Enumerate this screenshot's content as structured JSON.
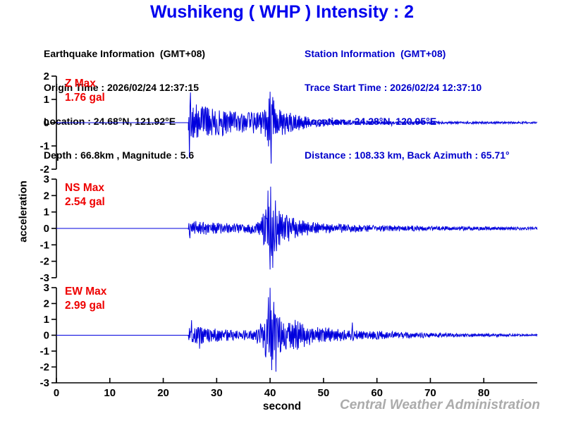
{
  "header": {
    "title": "Wushikeng  ( WHP )  Intensity : 2",
    "station_name": "Wushikeng",
    "station_code": "WHP",
    "intensity": "2"
  },
  "earthquake_info": {
    "heading": "Earthquake Information  (GMT+08)",
    "origin_time": "Origin Time : 2026/02/24 12:37:15",
    "location": "Location : 24.68°N, 121.92°E",
    "depth_magnitude": "Depth : 66.8km , Magnitude : 5.6"
  },
  "station_info": {
    "heading": "Station Information  (GMT+08)",
    "trace_start_time": "Trace Start Time : 2026/02/24 12:37:10",
    "location": "Location : 24.28°N, 120.95°E",
    "distance_azimuth": "Distance : 108.33 km, Back Azimuth : 65.71°"
  },
  "footer": {
    "watermark": "Central Weather Administration"
  },
  "colors": {
    "title_blue": "#0000ee",
    "station_blue": "#0000cc",
    "waveform_blue": "#0000dd",
    "max_label_red": "#ee0000",
    "axis_black": "#000000",
    "watermark_gray": "#ababab"
  },
  "chart_data": {
    "type": "line",
    "xlabel": "second",
    "ylabel": "acceleration",
    "x_range": [
      0,
      90
    ],
    "x_ticks": [
      0,
      10,
      20,
      30,
      40,
      50,
      60,
      70,
      80
    ],
    "grid": false,
    "traces": [
      {
        "name": "Z",
        "label": "Z Max",
        "max_text": "1.76 gal",
        "max_gal": 1.76,
        "unit": "gal",
        "ylim": [
          -2,
          2
        ],
        "y_ticks": [
          2,
          1,
          0,
          -1,
          -2
        ],
        "p_onset_s": 24.7,
        "s_arrival_s": 40.0,
        "seed": 13,
        "envelope": [
          [
            24.6,
            0.02
          ],
          [
            24.75,
            1.0
          ],
          [
            26,
            0.85
          ],
          [
            28,
            0.7
          ],
          [
            30,
            0.6
          ],
          [
            33,
            0.5
          ],
          [
            36,
            0.45
          ],
          [
            38.5,
            0.5
          ],
          [
            39.4,
            0.9
          ],
          [
            40,
            1.3
          ],
          [
            40.6,
            1.0
          ],
          [
            41.5,
            0.7
          ],
          [
            43,
            0.5
          ],
          [
            45,
            0.35
          ],
          [
            47,
            0.25
          ],
          [
            50,
            0.17
          ],
          [
            53,
            0.12
          ],
          [
            57,
            0.09
          ],
          [
            62,
            0.07
          ],
          [
            68,
            0.06
          ],
          [
            75,
            0.05
          ],
          [
            82,
            0.05
          ],
          [
            90,
            0.04
          ]
        ],
        "spikes": [
          [
            24.85,
            -1.5
          ],
          [
            25.1,
            1.3
          ],
          [
            39.95,
            1.33
          ],
          [
            40.2,
            -1.76
          ],
          [
            40.5,
            1.1
          ]
        ]
      },
      {
        "name": "NS",
        "label": "NS Max",
        "max_text": "2.54 gal",
        "max_gal": 2.54,
        "unit": "gal",
        "ylim": [
          -3,
          3
        ],
        "y_ticks": [
          3,
          2,
          1,
          0,
          -1,
          -2,
          -3
        ],
        "p_onset_s": 24.7,
        "s_arrival_s": 40.0,
        "seed": 47,
        "envelope": [
          [
            24.6,
            0.02
          ],
          [
            24.8,
            0.5
          ],
          [
            26,
            0.45
          ],
          [
            28,
            0.4
          ],
          [
            30,
            0.38
          ],
          [
            33,
            0.3
          ],
          [
            36,
            0.3
          ],
          [
            38,
            0.45
          ],
          [
            39,
            1.2
          ],
          [
            39.8,
            2.1
          ],
          [
            40.5,
            1.9
          ],
          [
            41.3,
            1.4
          ],
          [
            42.5,
            1.0
          ],
          [
            44,
            0.7
          ],
          [
            46,
            0.5
          ],
          [
            48,
            0.4
          ],
          [
            51,
            0.3
          ],
          [
            55,
            0.25
          ],
          [
            60,
            0.2
          ],
          [
            66,
            0.17
          ],
          [
            73,
            0.14
          ],
          [
            80,
            0.12
          ],
          [
            90,
            0.08
          ]
        ],
        "spikes": [
          [
            25.0,
            -0.6
          ],
          [
            39.6,
            2.3
          ],
          [
            39.95,
            -2.5
          ],
          [
            40.15,
            2.54
          ],
          [
            40.45,
            -2.4
          ],
          [
            41.0,
            1.7
          ]
        ]
      },
      {
        "name": "EW",
        "label": "EW Max",
        "max_text": "2.99 gal",
        "max_gal": 2.99,
        "unit": "gal",
        "ylim": [
          -3,
          3
        ],
        "y_ticks": [
          3,
          2,
          1,
          0,
          -1,
          -2,
          -3
        ],
        "p_onset_s": 24.7,
        "s_arrival_s": 40.0,
        "seed": 91,
        "envelope": [
          [
            24.6,
            0.02
          ],
          [
            24.8,
            0.55
          ],
          [
            25.8,
            0.5
          ],
          [
            27,
            0.55
          ],
          [
            29,
            0.45
          ],
          [
            31,
            0.4
          ],
          [
            33.5,
            0.32
          ],
          [
            36,
            0.35
          ],
          [
            38,
            0.6
          ],
          [
            39,
            1.3
          ],
          [
            39.8,
            2.0
          ],
          [
            40.6,
            1.7
          ],
          [
            41.5,
            1.2
          ],
          [
            42.8,
            0.95
          ],
          [
            44.5,
            1.0
          ],
          [
            46.5,
            0.75
          ],
          [
            48.5,
            0.6
          ],
          [
            50.5,
            0.5
          ],
          [
            53,
            0.4
          ],
          [
            56,
            0.3
          ],
          [
            60,
            0.28
          ],
          [
            65,
            0.2
          ],
          [
            72,
            0.14
          ],
          [
            80,
            0.1
          ],
          [
            90,
            0.07
          ]
        ],
        "spikes": [
          [
            25.3,
            0.95
          ],
          [
            26.8,
            -0.85
          ],
          [
            39.7,
            2.4
          ],
          [
            40.0,
            2.99
          ],
          [
            40.3,
            -2.2
          ],
          [
            40.7,
            2.1
          ],
          [
            41.1,
            -2.3
          ],
          [
            55.4,
            0.8
          ]
        ]
      }
    ]
  }
}
